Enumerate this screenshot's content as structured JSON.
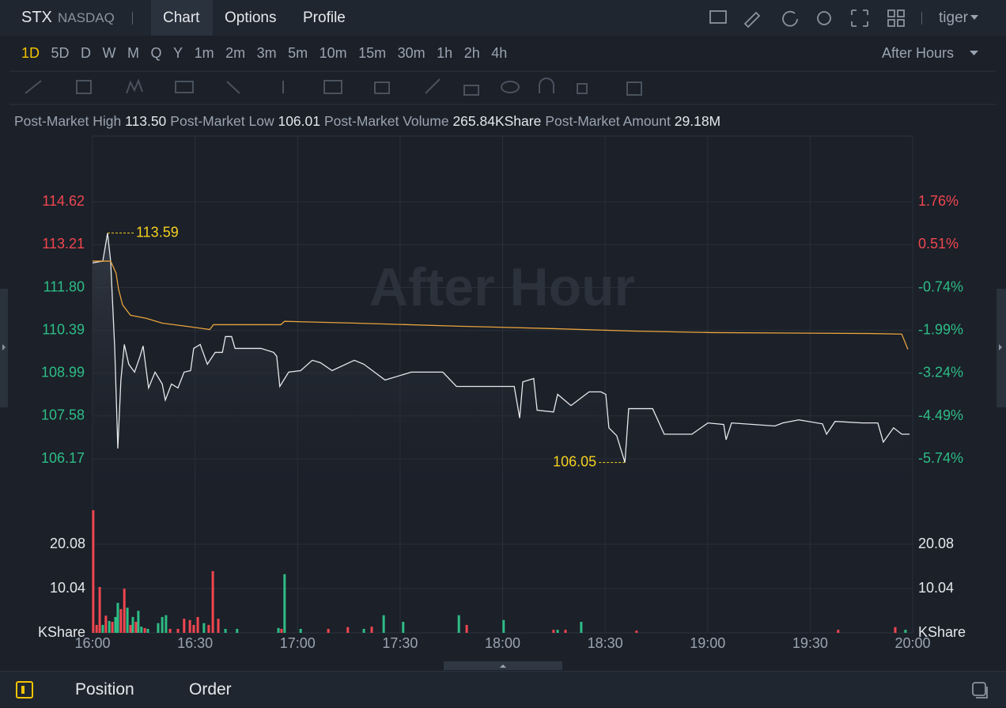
{
  "header": {
    "symbol": "STX",
    "exchange": "NASDAQ",
    "tabs": [
      "Chart",
      "Options",
      "Profile"
    ],
    "user": "tiger"
  },
  "periods": [
    "1D",
    "5D",
    "D",
    "W",
    "M",
    "Q",
    "Y",
    "1m",
    "2m",
    "3m",
    "5m",
    "10m",
    "15m",
    "30m",
    "1h",
    "2h",
    "4h"
  ],
  "session": "After Hours",
  "stats": [
    {
      "label": "Post-Market High",
      "value": "113.50"
    },
    {
      "label": "Post-Market Low",
      "value": "106.01"
    },
    {
      "label": "Post-Market Volume",
      "value": "265.84KShare"
    },
    {
      "label": "Post-Market Amount",
      "value": "29.18M"
    }
  ],
  "chart_data": [
    {
      "type": "line",
      "watermark": "After Hour",
      "xlim": [
        0,
        240
      ],
      "ylim": [
        104.87,
        116.78
      ],
      "yticks": [
        106.17,
        107.58,
        108.99,
        110.39,
        {
          "value": 111.8,
          "label": "111.80"
        },
        113.21,
        114.62
      ],
      "y2lim": [
        -6.89,
        3.68
      ],
      "y2ticks": [
        {
          "value": -5.74,
          "label": "-5.74%"
        },
        {
          "value": -4.49,
          "label": "-4.49%"
        },
        {
          "value": -3.24,
          "label": "-3.24%"
        },
        {
          "value": -1.99,
          "label": "-1.99%"
        },
        {
          "value": -0.74,
          "label": "-0.74%"
        },
        {
          "value": 0.51,
          "label": "0.51%"
        },
        {
          "value": 1.76,
          "label": "1.76%"
        }
      ],
      "up_color": "#f0464f",
      "down_color": "#2ebd85",
      "series": [
        {
          "color": "#e6e8eb",
          "fill": true,
          "x": [
            0,
            3.0,
            4.4,
            5.3,
            6.5,
            7.4,
            8.3,
            9.3,
            10.6,
            12.3,
            13.9,
            14.8,
            16.4,
            18.3,
            20.4,
            21.3,
            23.1,
            25.0,
            26.8,
            28.7,
            29.6,
            31.5,
            33.6,
            35.9,
            38.0,
            38.9,
            40.7,
            41.7,
            44.7,
            49.3,
            53.0,
            53.9,
            54.8,
            57.4,
            60.9,
            64.3,
            66.7,
            70.1,
            76.6,
            79.4,
            85.6,
            93.3,
            102.5,
            106.5,
            114.1,
            123.4,
            125.0,
            125.9,
            129.1,
            130.1,
            134.9,
            136.1,
            140.0,
            145.3,
            148.8,
            150.2,
            151.1,
            153.4,
            155.8,
            156.9,
            163.9,
            167.3,
            175.4,
            180.1,
            184.7,
            185.4,
            187.0,
            199.7,
            202.0,
            206.7,
            213.6,
            214.8,
            217.3,
            225.2,
            229.8,
            231.4,
            234.4,
            236.8,
            239.1
          ],
          "values": [
            112.61,
            112.67,
            113.59,
            112.67,
            109.8,
            106.51,
            108.76,
            109.93,
            109.28,
            109.02,
            109.54,
            109.88,
            108.5,
            109.02,
            108.63,
            108.1,
            108.63,
            108.5,
            109.02,
            109.07,
            109.8,
            109.93,
            109.28,
            109.67,
            109.67,
            110.19,
            110.19,
            109.8,
            109.8,
            109.8,
            109.67,
            109.54,
            108.55,
            109.02,
            109.07,
            109.41,
            109.33,
            109.07,
            109.41,
            109.28,
            108.76,
            109.02,
            109.02,
            108.55,
            108.55,
            108.55,
            107.51,
            108.7,
            108.81,
            107.77,
            107.71,
            108.29,
            107.92,
            108.37,
            108.37,
            108.29,
            107.19,
            106.93,
            106.05,
            107.82,
            107.82,
            106.98,
            106.98,
            107.35,
            107.3,
            106.8,
            107.35,
            107.25,
            107.35,
            107.45,
            107.32,
            106.98,
            107.4,
            107.35,
            107.35,
            106.72,
            107.19,
            106.98,
            106.98
          ]
        },
        {
          "color": "#e8a33d",
          "fill": false,
          "x": [
            0,
            5.3,
            6.9,
            7.6,
            8.8,
            11.1,
            15.7,
            20.4,
            27.3,
            34.3,
            35.4,
            55.1,
            56.2,
            77.1,
            107.2,
            134.9,
            158.1,
            181.2,
            227.5,
            236.8,
            238.6
          ],
          "values": [
            112.67,
            112.67,
            112.27,
            111.75,
            111.23,
            110.89,
            110.79,
            110.63,
            110.53,
            110.42,
            110.58,
            110.58,
            110.69,
            110.63,
            110.53,
            110.45,
            110.37,
            110.32,
            110.29,
            110.27,
            109.77
          ]
        }
      ],
      "annotations": [
        {
          "value": 113.59,
          "x": 4.4,
          "side": "right",
          "color": "#f5d020"
        },
        {
          "value": 106.05,
          "x": 155.8,
          "side": "left",
          "color": "#f5d020"
        }
      ]
    },
    {
      "type": "bar",
      "xlim": [
        0,
        240
      ],
      "xticks": [
        {
          "value": 0,
          "label": "16:00"
        },
        {
          "value": 30,
          "label": "16:30"
        },
        {
          "value": 60,
          "label": "17:00"
        },
        {
          "value": 90,
          "label": "17:30"
        },
        {
          "value": 120,
          "label": "18:00"
        },
        {
          "value": 150,
          "label": "18:30"
        },
        {
          "value": 180,
          "label": "19:00"
        },
        {
          "value": 210,
          "label": "19:30"
        },
        {
          "value": 240,
          "label": "20:00"
        }
      ],
      "ylim": [
        0,
        30.12
      ],
      "yticks": [
        {
          "value": 0,
          "label": "KShare"
        },
        10.04,
        20.08
      ],
      "x": [
        0.2,
        1.2,
        2.1,
        3.0,
        3.9,
        4.9,
        5.8,
        6.7,
        7.4,
        8.3,
        9.3,
        10.2,
        11.1,
        11.8,
        12.7,
        13.4,
        14.3,
        15.3,
        16.2,
        19.2,
        20.4,
        21.5,
        22.7,
        25.0,
        26.8,
        28.5,
        29.6,
        30.8,
        32.6,
        34.0,
        35.2,
        36.8,
        38.9,
        42.3,
        54.4,
        55.3,
        56.2,
        60.9,
        69.0,
        74.7,
        79.4,
        81.7,
        85.2,
        90.9,
        107.2,
        109.5,
        120.3,
        134.9,
        136.1,
        138.4,
        143.0,
        159.2,
        218.2,
        234.9,
        237.9
      ],
      "values": [
        27.8,
        1.8,
        10.4,
        1.8,
        3.9,
        2.7,
        2.5,
        3.6,
        6.8,
        5.4,
        10.0,
        5.7,
        1.8,
        3.6,
        2.5,
        5.0,
        1.4,
        1.1,
        0.9,
        2.2,
        3.6,
        4.0,
        0.9,
        0.9,
        3.2,
        2.9,
        1.8,
        3.6,
        2.2,
        1.8,
        14.0,
        3.2,
        0.9,
        0.9,
        1.1,
        0.9,
        13.3,
        0.9,
        0.9,
        1.3,
        0.9,
        1.4,
        4.0,
        2.5,
        4.0,
        1.8,
        2.9,
        0.7,
        0.7,
        0.7,
        2.5,
        0.5,
        0.7,
        1.3,
        0.7
      ],
      "colors": [
        "#f0464f",
        "#f0464f",
        "#f0464f",
        "#2ebd85",
        "#f0464f",
        "#2ebd85",
        "#f0464f",
        "#2ebd85",
        "#2ebd85",
        "#f0464f",
        "#f0464f",
        "#2ebd85",
        "#f0464f",
        "#2ebd85",
        "#f0464f",
        "#2ebd85",
        "#2ebd85",
        "#f0464f",
        "#2ebd85",
        "#2ebd85",
        "#2ebd85",
        "#2ebd85",
        "#f0464f",
        "#f0464f",
        "#f0464f",
        "#f0464f",
        "#f0464f",
        "#f0464f",
        "#2ebd85",
        "#f0464f",
        "#f0464f",
        "#f0464f",
        "#2ebd85",
        "#2ebd85",
        "#2ebd85",
        "#f0464f",
        "#2ebd85",
        "#2ebd85",
        "#f0464f",
        "#f0464f",
        "#2ebd85",
        "#f0464f",
        "#2ebd85",
        "#2ebd85",
        "#2ebd85",
        "#f0464f",
        "#2ebd85",
        "#f0464f",
        "#2ebd85",
        "#f0464f",
        "#2ebd85",
        "#f0464f",
        "#f0464f",
        "#f0464f",
        "#2ebd85"
      ]
    }
  ],
  "footer": {
    "tabs": [
      "Position",
      "Order"
    ]
  }
}
